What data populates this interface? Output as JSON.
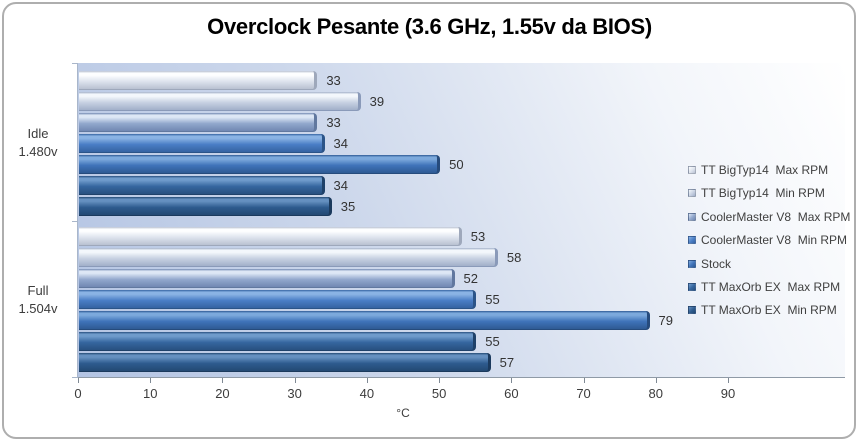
{
  "chart_data": {
    "type": "bar",
    "orientation": "horizontal",
    "title": "Overclock Pesante (3.6 GHz, 1.55v da BIOS)",
    "xlabel": "°C",
    "ylabel": "",
    "xlim": [
      0,
      90
    ],
    "x_ticks": [
      0,
      10,
      20,
      30,
      40,
      50,
      60,
      70,
      80,
      90
    ],
    "grid": false,
    "legend_position": "right",
    "categories": [
      {
        "line1": "Idle",
        "line2": "1.480v"
      },
      {
        "line1": "Full",
        "line2": "1.504v"
      }
    ],
    "series": [
      {
        "name": "TT BigTyp14  Max RPM",
        "values": [
          33,
          53
        ],
        "color": "#dde3ed",
        "hi": "#fdfeff",
        "dark": "#b9c1d1",
        "cap": "#9ea8bb"
      },
      {
        "name": "TT BigTyp14  Min RPM",
        "values": [
          39,
          58
        ],
        "color": "#c7d1e2",
        "hi": "#f3f7fc",
        "dark": "#a2b0c9",
        "cap": "#8a9ab9"
      },
      {
        "name": "CoolerMaster V8  Max RPM",
        "values": [
          33,
          52
        ],
        "color": "#92a8cd",
        "hi": "#dde7f5",
        "dark": "#7188b2",
        "cap": "#61789f"
      },
      {
        "name": "CoolerMaster V8  Min RPM",
        "values": [
          34,
          55
        ],
        "color": "#4a7ec6",
        "hi": "#8ab3e4",
        "dark": "#3563a2",
        "cap": "#2b5488"
      },
      {
        "name": "Stock",
        "values": [
          50,
          79
        ],
        "color": "#3f73b9",
        "hi": "#7ca9dc",
        "dark": "#2e5a94",
        "cap": "#264b7c"
      },
      {
        "name": "TT MaxOrb EX  Max RPM",
        "values": [
          34,
          55
        ],
        "color": "#35669f",
        "hi": "#6f9bcb",
        "dark": "#285080",
        "cap": "#1f4169"
      },
      {
        "name": "TT MaxOrb EX  Min RPM",
        "values": [
          35,
          57
        ],
        "color": "#2e5b8e",
        "hi": "#6590c0",
        "dark": "#234973",
        "cap": "#1b3a5d"
      }
    ]
  }
}
